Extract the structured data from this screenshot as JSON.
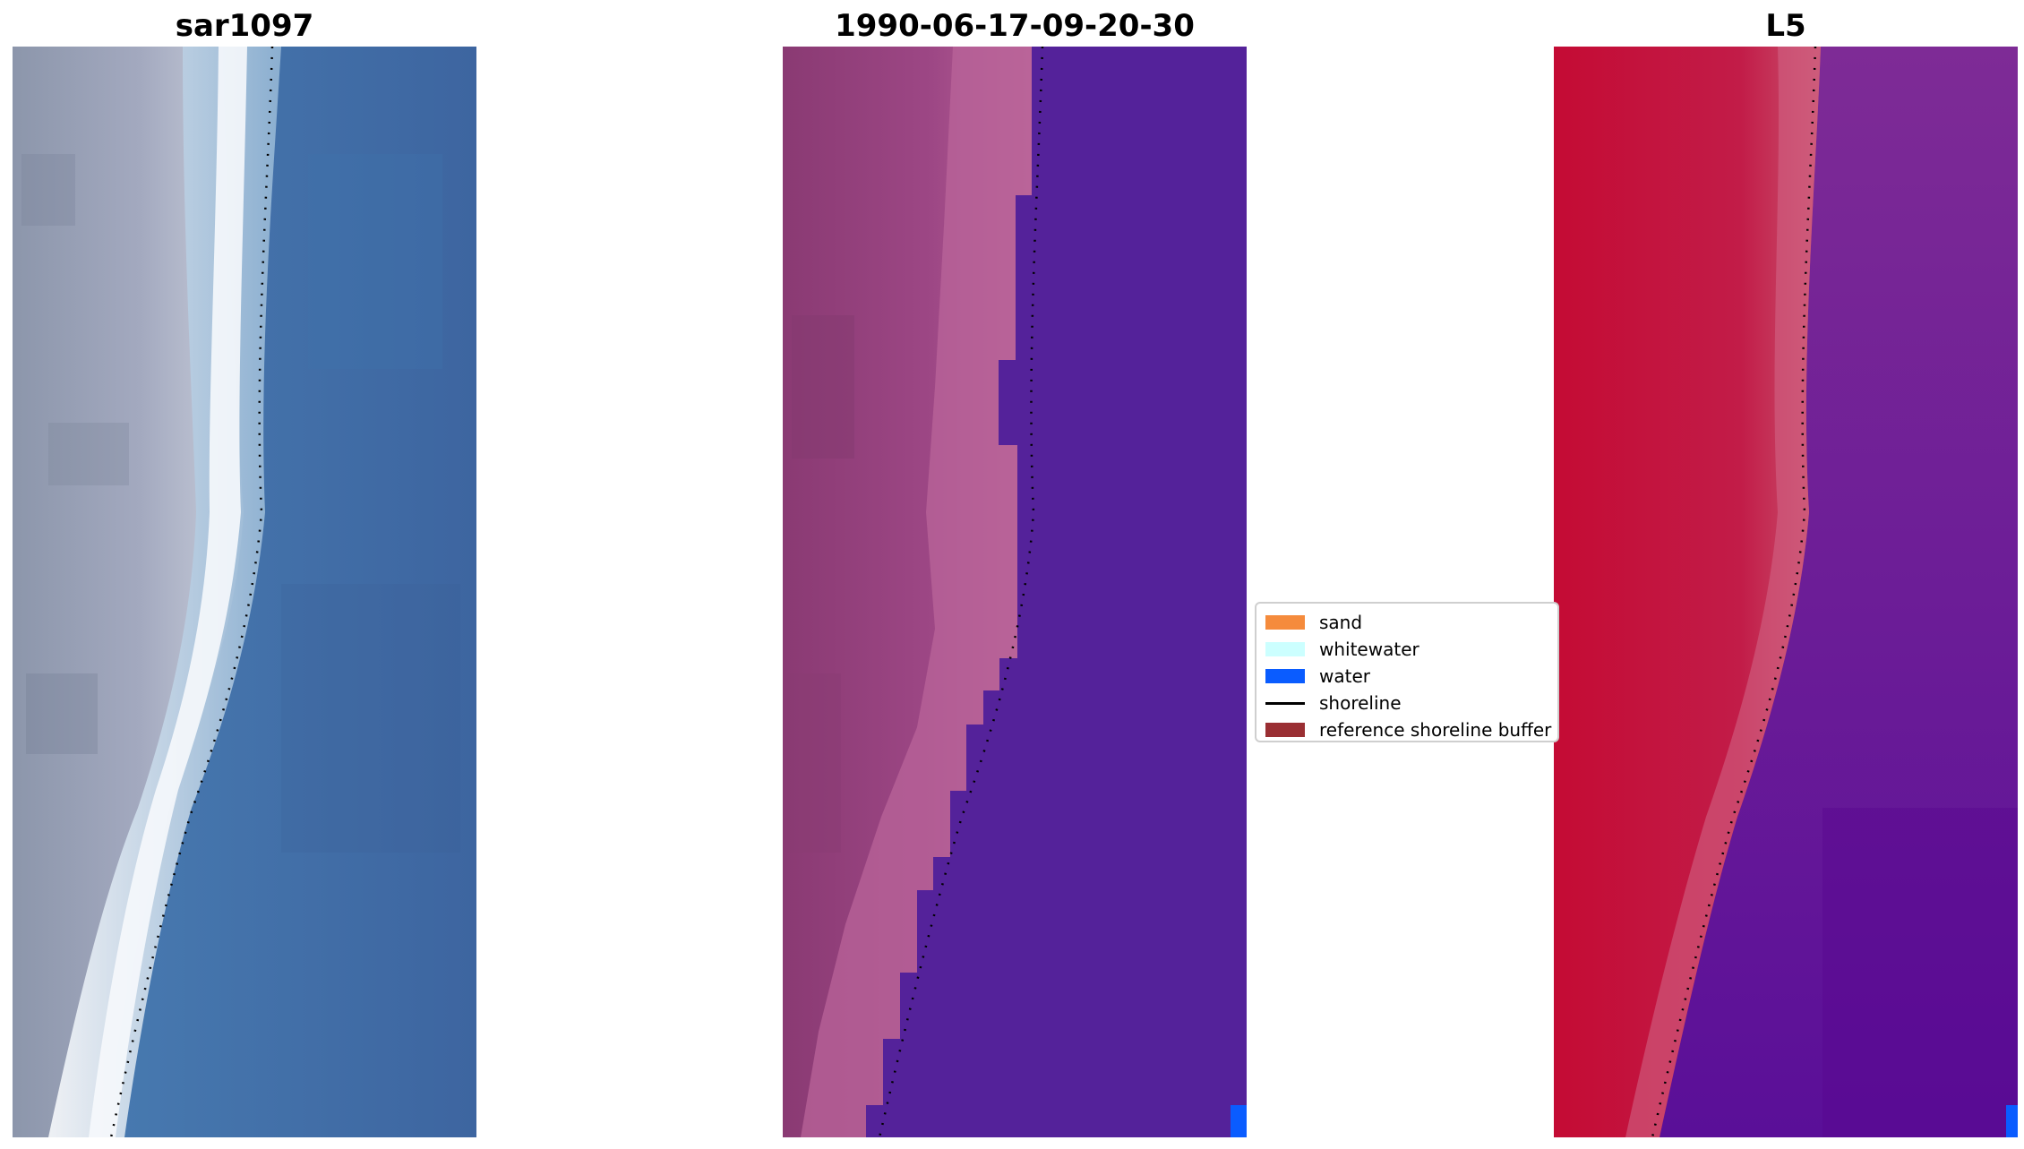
{
  "panels": [
    {
      "title": "sar1097",
      "image": "satellite-rgb-composite"
    },
    {
      "title": "1990-06-17-09-20-30",
      "image": "classified-image"
    },
    {
      "title": "L5",
      "image": "false-color-index"
    }
  ],
  "legend": {
    "items": [
      {
        "label": "sand",
        "color": "#f58b3c",
        "kind": "patch"
      },
      {
        "label": "whitewater",
        "color": "#ccffff",
        "kind": "patch"
      },
      {
        "label": "water",
        "color": "#0a5cff",
        "kind": "patch"
      },
      {
        "label": "shoreline",
        "color": "#000000",
        "kind": "line"
      },
      {
        "label": "reference shoreline buffer",
        "color": "#9a2f33",
        "kind": "patch"
      }
    ]
  }
}
